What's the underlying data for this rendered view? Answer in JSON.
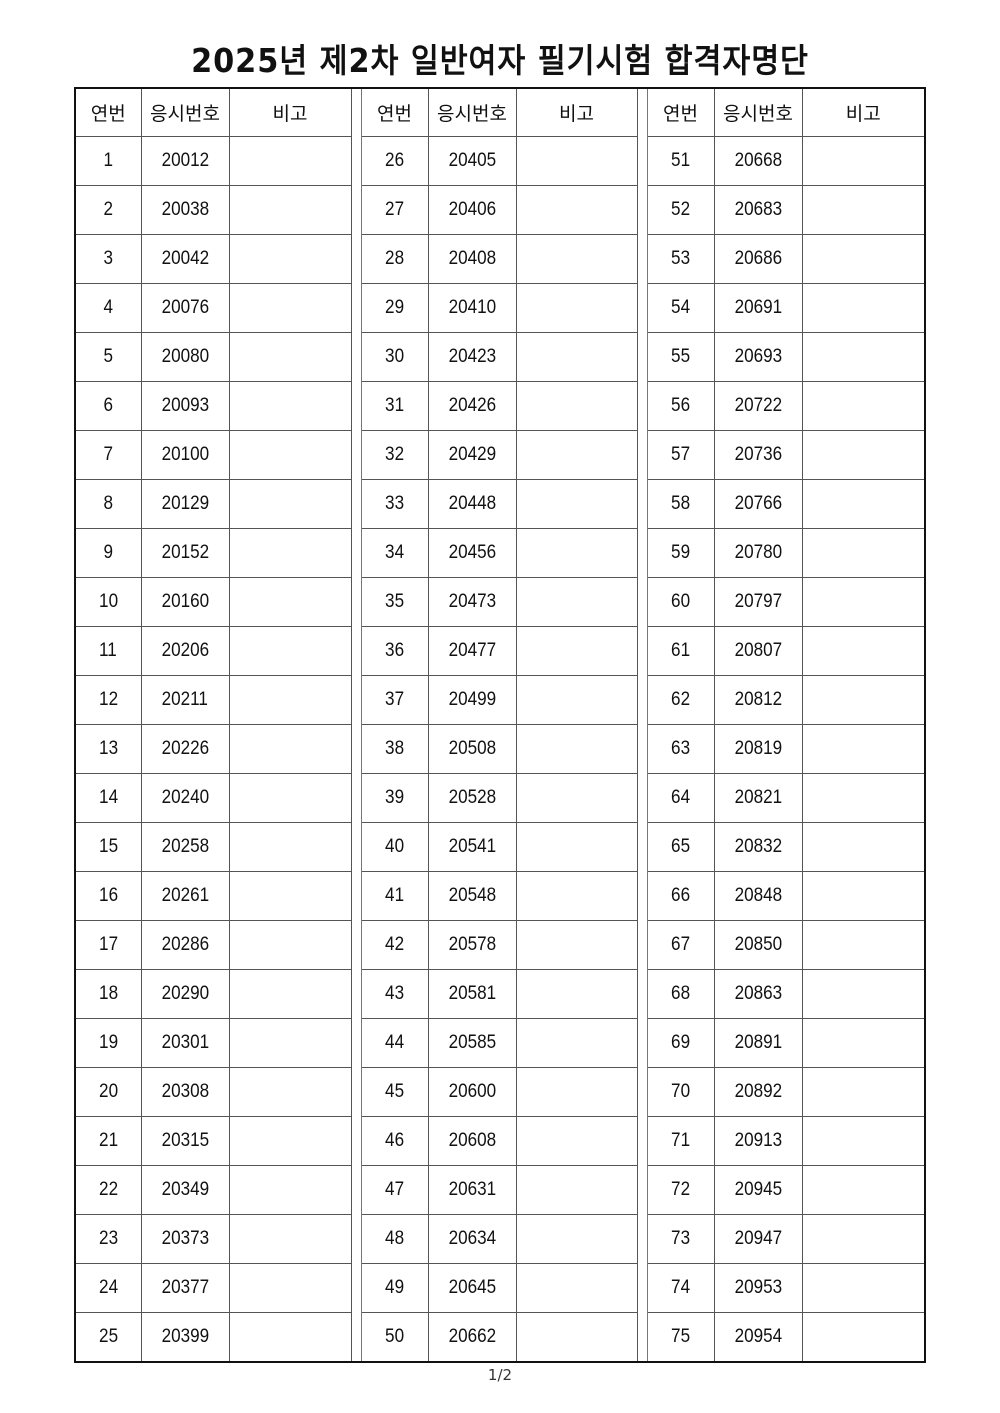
{
  "title": "2025년 제2차 일반여자 필기시험 합격자명단",
  "headers": {
    "no": "연번",
    "exam_id": "응시번호",
    "note": "비고"
  },
  "groups": [
    {
      "rows": [
        {
          "no": "1",
          "id": "20012",
          "note": ""
        },
        {
          "no": "2",
          "id": "20038",
          "note": ""
        },
        {
          "no": "3",
          "id": "20042",
          "note": ""
        },
        {
          "no": "4",
          "id": "20076",
          "note": ""
        },
        {
          "no": "5",
          "id": "20080",
          "note": ""
        },
        {
          "no": "6",
          "id": "20093",
          "note": ""
        },
        {
          "no": "7",
          "id": "20100",
          "note": ""
        },
        {
          "no": "8",
          "id": "20129",
          "note": ""
        },
        {
          "no": "9",
          "id": "20152",
          "note": ""
        },
        {
          "no": "10",
          "id": "20160",
          "note": ""
        },
        {
          "no": "11",
          "id": "20206",
          "note": ""
        },
        {
          "no": "12",
          "id": "20211",
          "note": ""
        },
        {
          "no": "13",
          "id": "20226",
          "note": ""
        },
        {
          "no": "14",
          "id": "20240",
          "note": ""
        },
        {
          "no": "15",
          "id": "20258",
          "note": ""
        },
        {
          "no": "16",
          "id": "20261",
          "note": ""
        },
        {
          "no": "17",
          "id": "20286",
          "note": ""
        },
        {
          "no": "18",
          "id": "20290",
          "note": ""
        },
        {
          "no": "19",
          "id": "20301",
          "note": ""
        },
        {
          "no": "20",
          "id": "20308",
          "note": ""
        },
        {
          "no": "21",
          "id": "20315",
          "note": ""
        },
        {
          "no": "22",
          "id": "20349",
          "note": ""
        },
        {
          "no": "23",
          "id": "20373",
          "note": ""
        },
        {
          "no": "24",
          "id": "20377",
          "note": ""
        },
        {
          "no": "25",
          "id": "20399",
          "note": ""
        }
      ]
    },
    {
      "rows": [
        {
          "no": "26",
          "id": "20405",
          "note": ""
        },
        {
          "no": "27",
          "id": "20406",
          "note": ""
        },
        {
          "no": "28",
          "id": "20408",
          "note": ""
        },
        {
          "no": "29",
          "id": "20410",
          "note": ""
        },
        {
          "no": "30",
          "id": "20423",
          "note": ""
        },
        {
          "no": "31",
          "id": "20426",
          "note": ""
        },
        {
          "no": "32",
          "id": "20429",
          "note": ""
        },
        {
          "no": "33",
          "id": "20448",
          "note": ""
        },
        {
          "no": "34",
          "id": "20456",
          "note": ""
        },
        {
          "no": "35",
          "id": "20473",
          "note": ""
        },
        {
          "no": "36",
          "id": "20477",
          "note": ""
        },
        {
          "no": "37",
          "id": "20499",
          "note": ""
        },
        {
          "no": "38",
          "id": "20508",
          "note": ""
        },
        {
          "no": "39",
          "id": "20528",
          "note": ""
        },
        {
          "no": "40",
          "id": "20541",
          "note": ""
        },
        {
          "no": "41",
          "id": "20548",
          "note": ""
        },
        {
          "no": "42",
          "id": "20578",
          "note": ""
        },
        {
          "no": "43",
          "id": "20581",
          "note": ""
        },
        {
          "no": "44",
          "id": "20585",
          "note": ""
        },
        {
          "no": "45",
          "id": "20600",
          "note": ""
        },
        {
          "no": "46",
          "id": "20608",
          "note": ""
        },
        {
          "no": "47",
          "id": "20631",
          "note": ""
        },
        {
          "no": "48",
          "id": "20634",
          "note": ""
        },
        {
          "no": "49",
          "id": "20645",
          "note": ""
        },
        {
          "no": "50",
          "id": "20662",
          "note": ""
        }
      ]
    },
    {
      "rows": [
        {
          "no": "51",
          "id": "20668",
          "note": ""
        },
        {
          "no": "52",
          "id": "20683",
          "note": ""
        },
        {
          "no": "53",
          "id": "20686",
          "note": ""
        },
        {
          "no": "54",
          "id": "20691",
          "note": ""
        },
        {
          "no": "55",
          "id": "20693",
          "note": ""
        },
        {
          "no": "56",
          "id": "20722",
          "note": ""
        },
        {
          "no": "57",
          "id": "20736",
          "note": ""
        },
        {
          "no": "58",
          "id": "20766",
          "note": ""
        },
        {
          "no": "59",
          "id": "20780",
          "note": ""
        },
        {
          "no": "60",
          "id": "20797",
          "note": ""
        },
        {
          "no": "61",
          "id": "20807",
          "note": ""
        },
        {
          "no": "62",
          "id": "20812",
          "note": ""
        },
        {
          "no": "63",
          "id": "20819",
          "note": ""
        },
        {
          "no": "64",
          "id": "20821",
          "note": ""
        },
        {
          "no": "65",
          "id": "20832",
          "note": ""
        },
        {
          "no": "66",
          "id": "20848",
          "note": ""
        },
        {
          "no": "67",
          "id": "20850",
          "note": ""
        },
        {
          "no": "68",
          "id": "20863",
          "note": ""
        },
        {
          "no": "69",
          "id": "20891",
          "note": ""
        },
        {
          "no": "70",
          "id": "20892",
          "note": ""
        },
        {
          "no": "71",
          "id": "20913",
          "note": ""
        },
        {
          "no": "72",
          "id": "20945",
          "note": ""
        },
        {
          "no": "73",
          "id": "20947",
          "note": ""
        },
        {
          "no": "74",
          "id": "20953",
          "note": ""
        },
        {
          "no": "75",
          "id": "20954",
          "note": ""
        }
      ]
    }
  ],
  "footer": {
    "page": "1/2"
  }
}
